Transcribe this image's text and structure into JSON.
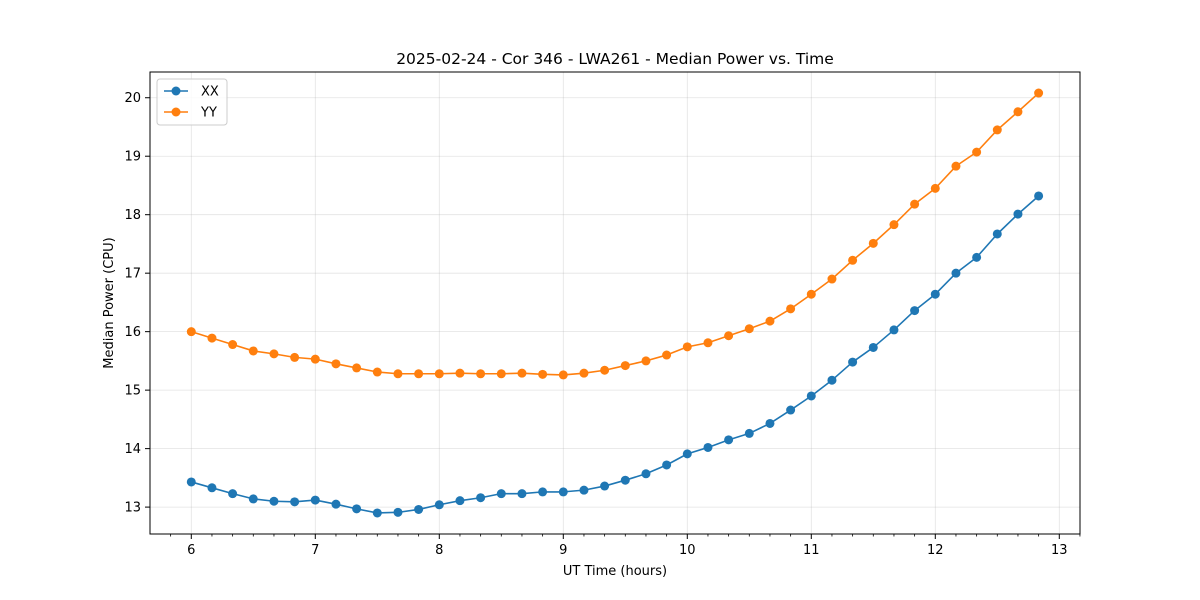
{
  "chart_data": {
    "type": "line",
    "title": "2025-02-24 - Cor 346 - LWA261 - Median Power vs. Time",
    "xlabel": "UT Time (hours)",
    "ylabel": "Median Power (CPU)",
    "xlim": [
      5.667,
      13.167
    ],
    "ylim": [
      12.54,
      20.44
    ],
    "xticks": [
      6,
      7,
      8,
      9,
      10,
      11,
      12,
      13
    ],
    "xtick_labels": [
      "6",
      "7",
      "8",
      "9",
      "10",
      "11",
      "12",
      "13"
    ],
    "yticks": [
      13,
      14,
      15,
      16,
      17,
      18,
      19,
      20
    ],
    "ytick_labels": [
      "13",
      "14",
      "15",
      "16",
      "17",
      "18",
      "19",
      "20"
    ],
    "grid": true,
    "legend_position": "upper-left",
    "x": [
      6.0,
      6.1667,
      6.3333,
      6.5,
      6.6667,
      6.8333,
      7.0,
      7.1667,
      7.3333,
      7.5,
      7.6667,
      7.8333,
      8.0,
      8.1667,
      8.3333,
      8.5,
      8.6667,
      8.8333,
      9.0,
      9.1667,
      9.3333,
      9.5,
      9.6667,
      9.8333,
      10.0,
      10.1667,
      10.3333,
      10.5,
      10.6667,
      10.8333,
      11.0,
      11.1667,
      11.3333,
      11.5,
      11.6667,
      11.8333,
      12.0,
      12.1667,
      12.3333,
      12.5,
      12.6667,
      12.8333
    ],
    "series": [
      {
        "name": "XX",
        "color": "#1f77b4",
        "values": [
          13.43,
          13.33,
          13.23,
          13.14,
          13.1,
          13.09,
          13.12,
          13.05,
          12.97,
          12.9,
          12.91,
          12.96,
          13.04,
          13.11,
          13.16,
          13.23,
          13.23,
          13.26,
          13.26,
          13.29,
          13.36,
          13.46,
          13.57,
          13.72,
          13.91,
          14.02,
          14.15,
          14.26,
          14.43,
          14.66,
          14.9,
          15.17,
          15.48,
          15.73,
          16.03,
          16.36,
          16.64,
          17.0,
          17.27,
          17.67,
          18.01,
          18.32
        ]
      },
      {
        "name": "YY",
        "color": "#ff7f0e",
        "values": [
          16.0,
          15.89,
          15.78,
          15.67,
          15.62,
          15.56,
          15.53,
          15.45,
          15.38,
          15.31,
          15.28,
          15.28,
          15.28,
          15.29,
          15.28,
          15.28,
          15.29,
          15.27,
          15.26,
          15.29,
          15.34,
          15.42,
          15.5,
          15.6,
          15.74,
          15.81,
          15.93,
          16.05,
          16.18,
          16.39,
          16.64,
          16.9,
          17.22,
          17.51,
          17.83,
          18.18,
          18.45,
          18.83,
          19.07,
          19.45,
          19.76,
          20.08
        ]
      }
    ]
  }
}
